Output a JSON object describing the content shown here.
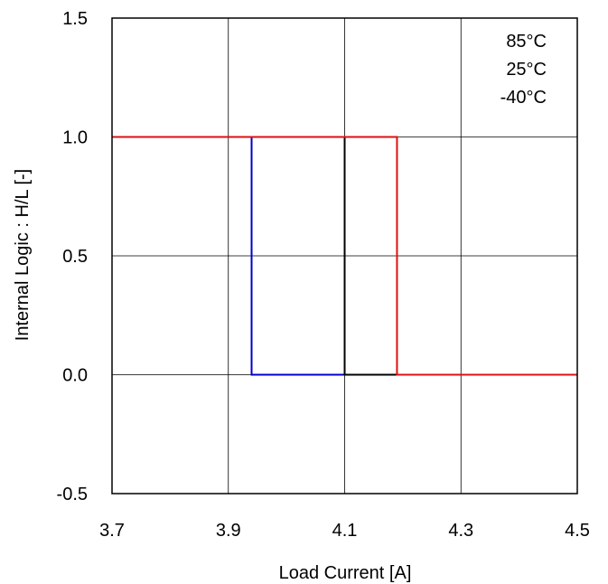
{
  "chart_data": {
    "type": "line",
    "title": "",
    "xlabel": "Load Current [A]",
    "ylabel": "Internal Logic : H/L [-]",
    "xlim": [
      3.7,
      4.5
    ],
    "ylim": [
      -0.5,
      1.5
    ],
    "xticks": [
      "3.7",
      "3.9",
      "4.1",
      "4.3",
      "4.5"
    ],
    "yticks": [
      "1.5",
      "1.0",
      "0.5",
      "0.0",
      "-0.5"
    ],
    "grid": true,
    "legend_position": "top-right",
    "series": [
      {
        "name": "85°C",
        "color": "#0000cc",
        "points": [
          [
            3.7,
            1.0
          ],
          [
            3.94,
            1.0
          ],
          [
            3.94,
            0.0
          ],
          [
            4.5,
            0.0
          ]
        ]
      },
      {
        "name": "25°C",
        "color": "#000000",
        "points": [
          [
            3.7,
            1.0
          ],
          [
            4.1,
            1.0
          ],
          [
            4.1,
            0.0
          ],
          [
            4.5,
            0.0
          ]
        ]
      },
      {
        "name": "-40°C",
        "color": "#dd1111",
        "points": [
          [
            3.7,
            1.0
          ],
          [
            4.19,
            1.0
          ],
          [
            4.19,
            0.0
          ],
          [
            4.5,
            0.0
          ]
        ]
      }
    ]
  }
}
